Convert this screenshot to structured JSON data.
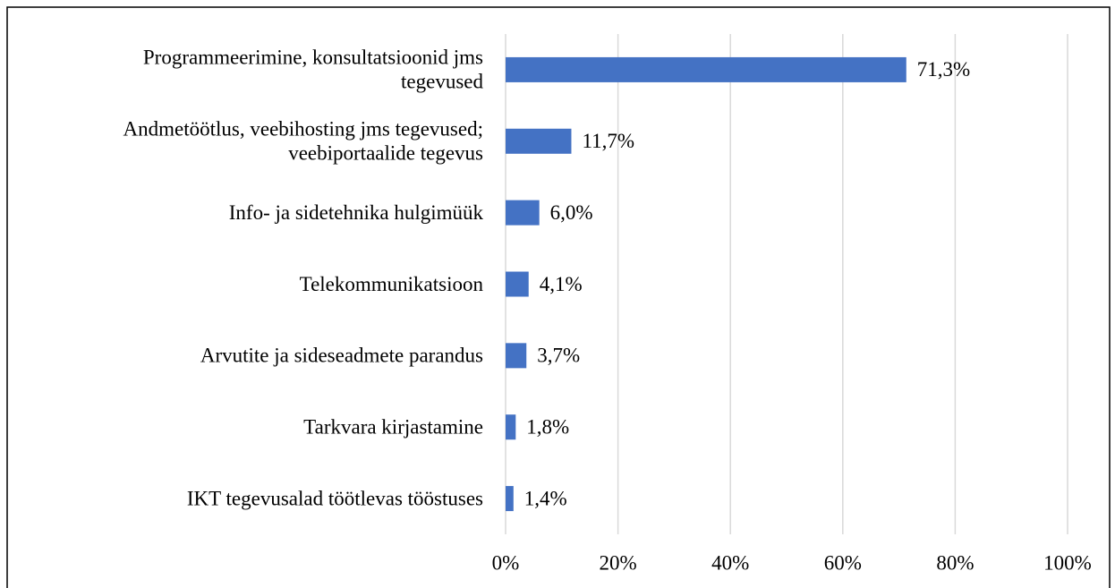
{
  "chart_data": {
    "type": "bar",
    "orientation": "horizontal",
    "categories": [
      "Programmeerimine, konsultatsioonid jms\ntegevused",
      "Andmetöötlus, veebihosting jms tegevused;\nveebiportaalide tegevus",
      "Info- ja sidetehnika hulgimüük",
      "Telekommunikatsioon",
      "Arvutite ja sideseadmete parandus",
      "Tarkvara kirjastamine",
      "IKT tegevusalad töötlevas tööstuses"
    ],
    "values": [
      71.3,
      11.7,
      6.0,
      4.1,
      3.7,
      1.8,
      1.4
    ],
    "value_labels": [
      "71,3%",
      "11,7%",
      "6,0%",
      "4,1%",
      "3,7%",
      "1,8%",
      "1,4%"
    ],
    "color": "#4472c4",
    "xlim": [
      0,
      100
    ],
    "xticks": [
      {
        "value": 0,
        "label": "0%"
      },
      {
        "value": 20,
        "label": "20%"
      },
      {
        "value": 40,
        "label": "40%"
      },
      {
        "value": 60,
        "label": "60%"
      },
      {
        "value": 80,
        "label": "80%"
      },
      {
        "value": 100,
        "label": "100%"
      }
    ],
    "grid": true
  }
}
